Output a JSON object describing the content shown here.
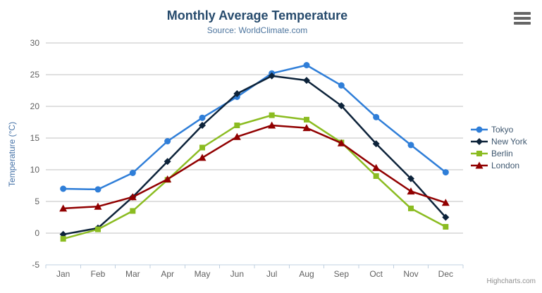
{
  "header": {
    "title": "Monthly Average Temperature",
    "subtitle": "Source: WorldClimate.com",
    "menu_icon": "hamburger-icon",
    "credits": "Highcharts.com"
  },
  "colors": {
    "grid": "#C0C0C0",
    "axis_line": "#C0D0E0",
    "axis_label": "#606060",
    "yaxis_title": "#4572a7",
    "title": "#274b6d",
    "subtitle": "#4d759e",
    "legend_text": "#3E576F"
  },
  "chart_data": {
    "type": "line",
    "title": "Monthly Average Temperature",
    "subtitle": "Source: WorldClimate.com",
    "categories": [
      "Jan",
      "Feb",
      "Mar",
      "Apr",
      "May",
      "Jun",
      "Jul",
      "Aug",
      "Sep",
      "Oct",
      "Nov",
      "Dec"
    ],
    "xlabel": "",
    "ylabel": "Temperature (°C)",
    "ylim": [
      -5,
      30
    ],
    "ytick_step": 5,
    "grid": true,
    "legend_position": "right",
    "series": [
      {
        "name": "Tokyo",
        "color": "#2f7ed8",
        "marker": "circle",
        "values": [
          7.0,
          6.9,
          9.5,
          14.5,
          18.2,
          21.5,
          25.2,
          26.5,
          23.3,
          18.3,
          13.9,
          9.6
        ]
      },
      {
        "name": "New York",
        "color": "#0d233a",
        "marker": "diamond",
        "values": [
          -0.2,
          0.8,
          5.7,
          11.3,
          17.0,
          22.0,
          24.8,
          24.1,
          20.1,
          14.1,
          8.6,
          2.5
        ]
      },
      {
        "name": "Berlin",
        "color": "#8bbc21",
        "marker": "square",
        "values": [
          -0.9,
          0.6,
          3.5,
          8.4,
          13.5,
          17.0,
          18.6,
          17.9,
          14.3,
          9.0,
          3.9,
          1.0
        ]
      },
      {
        "name": "London",
        "color": "#910000",
        "marker": "triangle",
        "values": [
          3.9,
          4.2,
          5.7,
          8.5,
          11.9,
          15.2,
          17.0,
          16.6,
          14.2,
          10.3,
          6.6,
          4.8
        ]
      }
    ]
  }
}
